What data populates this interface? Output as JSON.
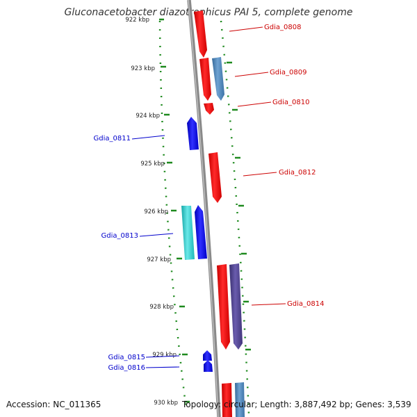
{
  "title": "Gluconacetobacter diazotrophicus PAI 5, complete genome",
  "accession": "Accession: NC_011365",
  "summary": "Topology: circular; Length: 3,887,492 bp; Genes: 3,539",
  "colors": {
    "backbone": "#8a8a8a",
    "ticks": "#1e8a1e",
    "forward_label": "#cc0000",
    "reverse_label": "#0000cc",
    "red_gene": "#ee0000",
    "steel_gene": "#4a82b8",
    "purple_gene": "#4b3f8a",
    "blue_gene": "#0000ee",
    "cyan_gene": "#22c8c8"
  },
  "kbp_labels": [
    "922 kbp",
    "923 kbp",
    "924 kbp",
    "925 kbp",
    "926 kbp",
    "927 kbp",
    "928 kbp",
    "929 kbp",
    "930 kbp"
  ],
  "gene_labels_forward": [
    "Gdia_0808",
    "Gdia_0809",
    "Gdia_0810",
    "Gdia_0812",
    "Gdia_0814"
  ],
  "gene_labels_reverse": [
    "Gdia_0811",
    "Gdia_0813",
    "Gdia_0815",
    "Gdia_0816"
  ]
}
